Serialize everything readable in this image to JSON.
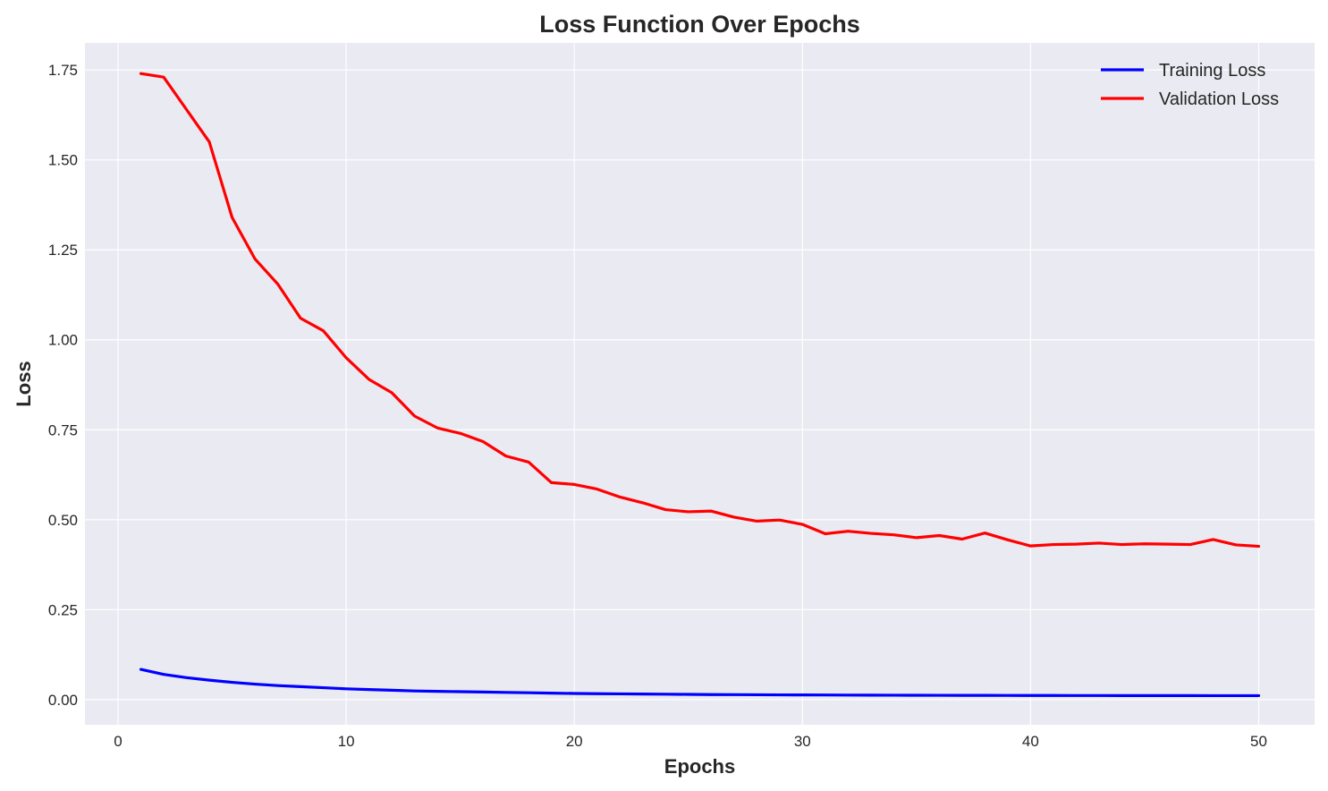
{
  "chart_data": {
    "type": "line",
    "title": "Loss Function Over Epochs",
    "xlabel": "Epochs",
    "ylabel": "Loss",
    "xlim": [
      -1.45,
      52.45
    ],
    "ylim": [
      -0.07,
      1.825
    ],
    "xticks": [
      0,
      10,
      20,
      30,
      40,
      50
    ],
    "xtick_labels": [
      "0",
      "10",
      "20",
      "30",
      "40",
      "50"
    ],
    "yticks": [
      0.0,
      0.25,
      0.5,
      0.75,
      1.0,
      1.25,
      1.5,
      1.75
    ],
    "ytick_labels": [
      "0.00",
      "0.25",
      "0.50",
      "0.75",
      "1.00",
      "1.25",
      "1.50",
      "1.75"
    ],
    "grid": true,
    "legend_position": "top-right",
    "background_color": "#eaeaf2",
    "x": [
      1,
      2,
      3,
      4,
      5,
      6,
      7,
      8,
      9,
      10,
      11,
      12,
      13,
      14,
      15,
      16,
      17,
      18,
      19,
      20,
      21,
      22,
      23,
      24,
      25,
      26,
      27,
      28,
      29,
      30,
      31,
      32,
      33,
      34,
      35,
      36,
      37,
      38,
      39,
      40,
      41,
      42,
      43,
      44,
      45,
      46,
      47,
      48,
      49,
      50
    ],
    "series": [
      {
        "name": "Training Loss",
        "color": "#0000ff",
        "values": [
          0.084,
          0.07,
          0.061,
          0.054,
          0.048,
          0.043,
          0.039,
          0.036,
          0.033,
          0.03,
          0.028,
          0.026,
          0.024,
          0.023,
          0.022,
          0.021,
          0.02,
          0.019,
          0.018,
          0.017,
          0.0165,
          0.016,
          0.0155,
          0.015,
          0.0145,
          0.014,
          0.0138,
          0.0135,
          0.0132,
          0.013,
          0.0128,
          0.0126,
          0.0124,
          0.0122,
          0.012,
          0.0119,
          0.0118,
          0.0117,
          0.0116,
          0.0115,
          0.0114,
          0.0113,
          0.0113,
          0.0112,
          0.0112,
          0.0111,
          0.0111,
          0.011,
          0.011,
          0.011
        ]
      },
      {
        "name": "Validation Loss",
        "color": "#ff0000",
        "values": [
          1.74,
          1.73,
          1.64,
          1.55,
          1.34,
          1.225,
          1.155,
          1.06,
          1.025,
          0.95,
          0.89,
          0.853,
          0.788,
          0.755,
          0.74,
          0.717,
          0.677,
          0.66,
          0.603,
          0.598,
          0.585,
          0.563,
          0.547,
          0.528,
          0.522,
          0.524,
          0.507,
          0.496,
          0.499,
          0.487,
          0.461,
          0.468,
          0.462,
          0.458,
          0.45,
          0.456,
          0.446,
          0.463,
          0.444,
          0.427,
          0.431,
          0.432,
          0.435,
          0.431,
          0.433,
          0.432,
          0.431,
          0.445,
          0.43,
          0.426
        ]
      }
    ]
  }
}
